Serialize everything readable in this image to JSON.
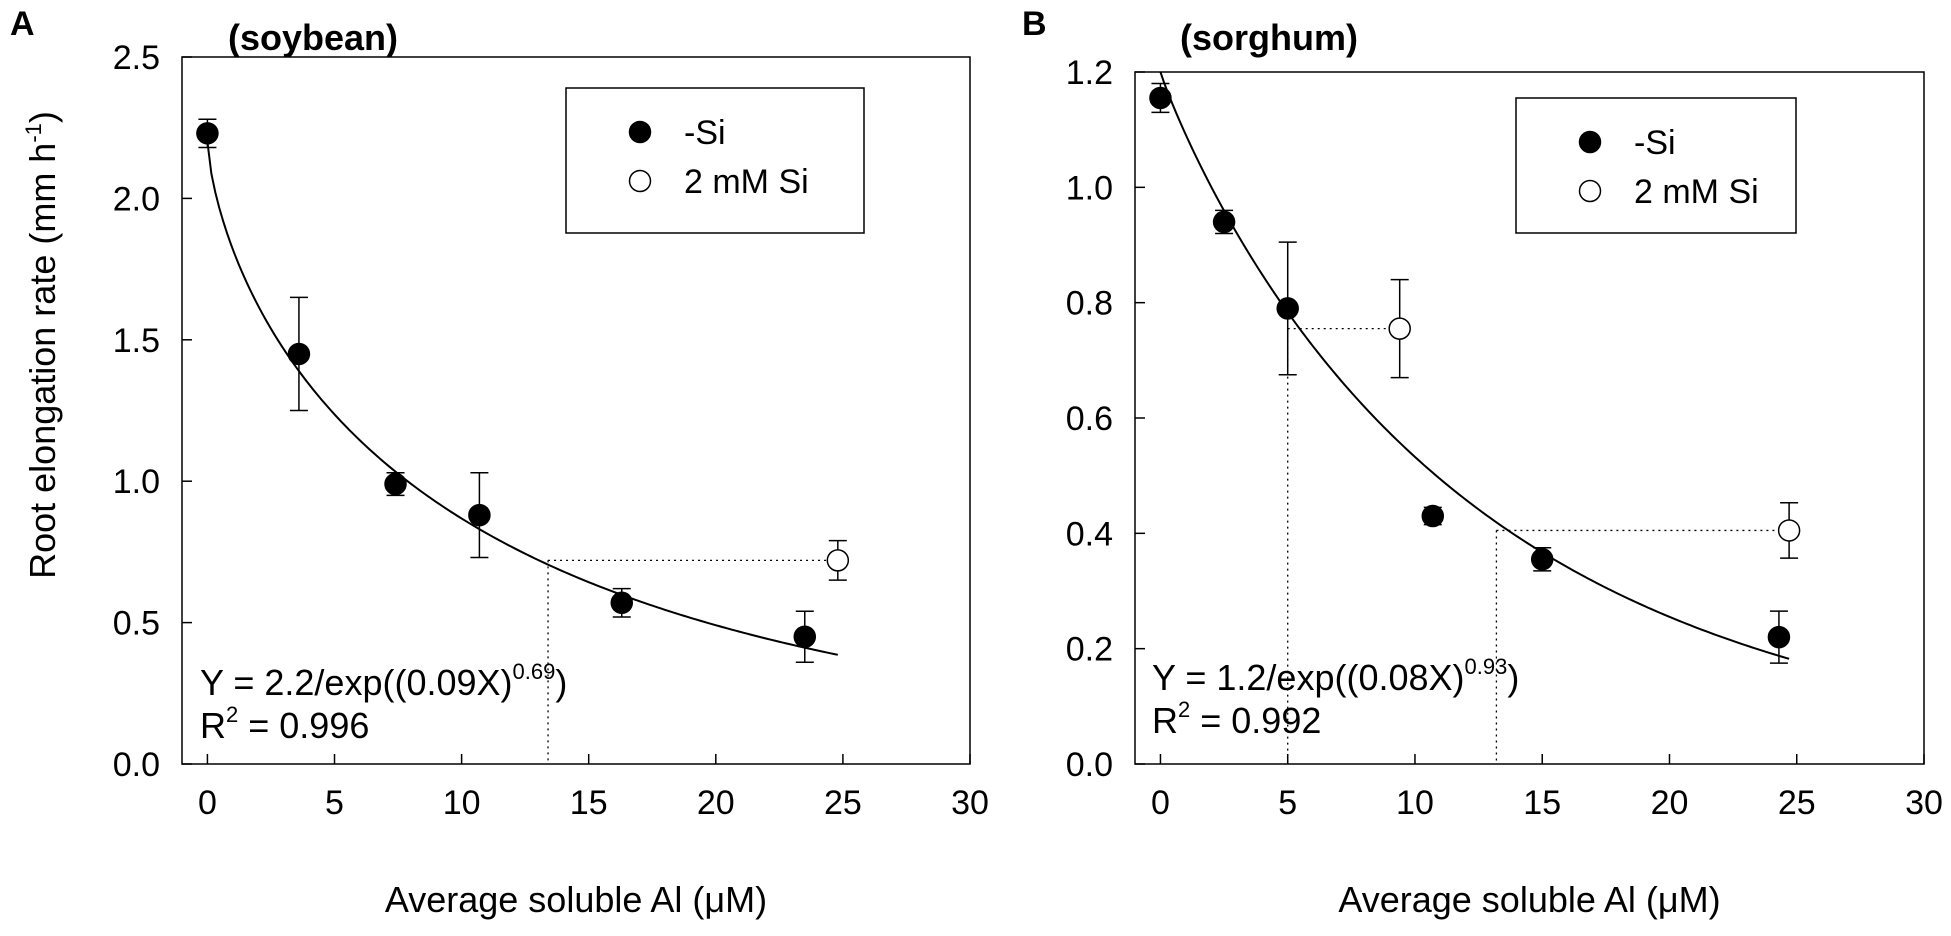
{
  "figure": {
    "y_axis_title_main": "Root elongation rate (mm h",
    "y_axis_title_sup": "-1",
    "y_axis_title_tail": ")"
  },
  "chart_data": [
    {
      "type": "scatter",
      "panel_letter": "A",
      "title": "(soybean)",
      "xlabel": "Average soluble Al (μM)",
      "ylabel": "Root elongation rate (mm h-1)",
      "xlim": [
        -1,
        30
      ],
      "ylim": [
        0,
        2.5
      ],
      "xticks": [
        0,
        5,
        10,
        15,
        20,
        25,
        30
      ],
      "yticks": [
        0.0,
        0.5,
        1.0,
        1.5,
        2.0,
        2.5
      ],
      "ytick_labels": [
        "0.0",
        "0.5",
        "1.0",
        "1.5",
        "2.0",
        "2.5"
      ],
      "legend": [
        {
          "label": "-Si",
          "marker": "filled-circle"
        },
        {
          "label": "2 mM Si",
          "marker": "open-circle"
        }
      ],
      "legend_position": "top-right",
      "series": [
        {
          "name": "-Si",
          "marker": "filled",
          "x": [
            0,
            3.6,
            7.4,
            10.7,
            16.3,
            23.5
          ],
          "y": [
            2.23,
            1.45,
            0.99,
            0.88,
            0.57,
            0.45
          ],
          "err": [
            0.05,
            0.2,
            0.04,
            0.15,
            0.05,
            0.09
          ]
        },
        {
          "name": "2 mM Si",
          "marker": "open",
          "x": [
            24.8
          ],
          "y": [
            0.72
          ],
          "err": [
            0.07
          ]
        }
      ],
      "fit": {
        "a": 2.2,
        "b": 0.09,
        "c": 0.69,
        "x_range": [
          0,
          24.8
        ]
      },
      "guide_lines": [
        {
          "from_x": 13.4,
          "to_x": 24.8,
          "y": 0.72
        }
      ],
      "equation": {
        "main": "Y = 2.2/exp((0.09X)",
        "exp": "0.69",
        "tail": ")"
      },
      "r2": {
        "prefix": "R",
        "sup": "2",
        "suffix": " = 0.996"
      }
    },
    {
      "type": "scatter",
      "panel_letter": "B",
      "title": "(sorghum)",
      "xlabel": "Average soluble Al (μM)",
      "ylabel": "",
      "xlim": [
        -1,
        30
      ],
      "ylim": [
        0,
        1.2
      ],
      "xticks": [
        0,
        5,
        10,
        15,
        20,
        25,
        30
      ],
      "yticks": [
        0.0,
        0.2,
        0.4,
        0.6,
        0.8,
        1.0,
        1.2
      ],
      "ytick_labels": [
        "0.0",
        "0.2",
        "0.4",
        "0.6",
        "0.8",
        "1.0",
        "1.2"
      ],
      "legend": [
        {
          "label": "-Si",
          "marker": "filled-circle"
        },
        {
          "label": "2 mM Si",
          "marker": "open-circle"
        }
      ],
      "legend_position": "top-right",
      "series": [
        {
          "name": "-Si",
          "marker": "filled",
          "x": [
            0,
            2.5,
            5.0,
            10.7,
            15.0,
            24.3
          ],
          "y": [
            1.155,
            0.94,
            0.79,
            0.43,
            0.355,
            0.22
          ],
          "err": [
            0.025,
            0.02,
            0.115,
            0.015,
            0.02,
            0.045
          ]
        },
        {
          "name": "2 mM Si",
          "marker": "open",
          "x": [
            9.4,
            24.7
          ],
          "y": [
            0.755,
            0.405
          ],
          "err": [
            0.085,
            0.048
          ]
        }
      ],
      "fit": {
        "a": 1.2,
        "b": 0.08,
        "c": 0.93,
        "x_range": [
          0,
          24.7
        ]
      },
      "guide_lines": [
        {
          "from_x": 5.0,
          "to_x": 9.4,
          "y": 0.755
        },
        {
          "from_x": 13.2,
          "to_x": 24.7,
          "y": 0.405
        }
      ],
      "equation": {
        "main": "Y = 1.2/exp((0.08X)",
        "exp": "0.93",
        "tail": ")"
      },
      "r2": {
        "prefix": "R",
        "sup": "2",
        "suffix": " = 0.992"
      }
    }
  ]
}
